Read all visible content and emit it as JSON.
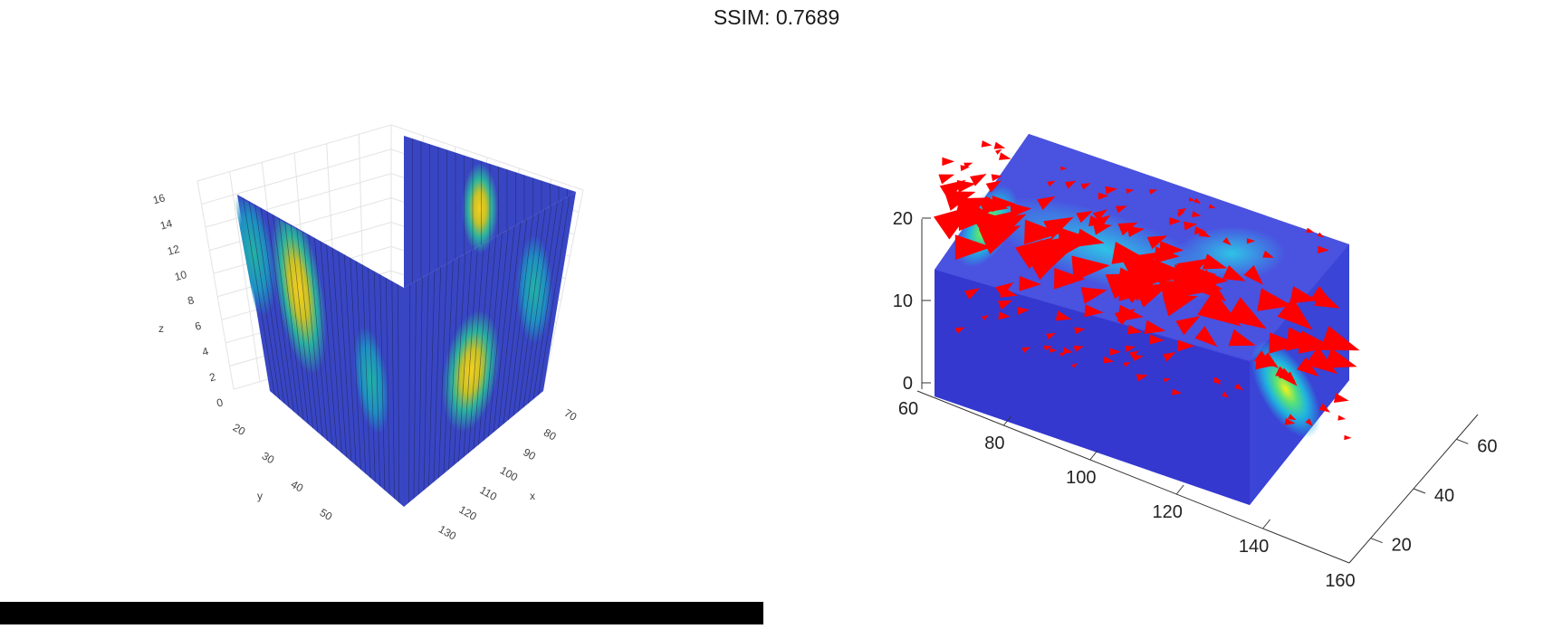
{
  "title": "SSIM: 0.7689",
  "chart_data": [
    {
      "type": "surface",
      "title": "",
      "xlabel": "x",
      "ylabel": "y",
      "zlabel": "z",
      "x_ticks": [
        "70",
        "80",
        "90",
        "100",
        "110",
        "120",
        "130"
      ],
      "y_ticks": [
        "20",
        "30",
        "40",
        "50"
      ],
      "z_ticks": [
        "0",
        "2",
        "4",
        "6",
        "8",
        "10",
        "12",
        "14",
        "16"
      ],
      "xlim": [
        65,
        135
      ],
      "ylim": [
        15,
        58
      ],
      "zlim": [
        0,
        17
      ],
      "colormap": "parula",
      "grid": true,
      "slices": [
        {
          "plane": "x",
          "value": 70,
          "hot_spots": [
            {
              "u": 0.32,
              "z": 10,
              "level": 0.95
            },
            {
              "u": 0.08,
              "z": 12,
              "level": 0.6
            }
          ]
        },
        {
          "plane": "y",
          "value": 20,
          "hot_spots": [
            {
              "u": 0.45,
              "z": 13,
              "level": 0.9
            }
          ]
        },
        {
          "plane": "x",
          "value": 130,
          "hot_spots": [
            {
              "u": 0.45,
              "z": 7,
              "level": 0.95
            }
          ]
        }
      ]
    },
    {
      "type": "slice-cone",
      "title": "",
      "x_ticks": [
        "60",
        "80",
        "100",
        "120",
        "140",
        "160"
      ],
      "y_ticks": [
        "20",
        "40",
        "60"
      ],
      "z_ticks": [
        "0",
        "10",
        "20"
      ],
      "xlim": [
        60,
        160
      ],
      "ylim": [
        10,
        70
      ],
      "zlim": [
        0,
        20
      ],
      "colormap": "jet",
      "cone_color": "#ff0000",
      "grid": false
    }
  ]
}
